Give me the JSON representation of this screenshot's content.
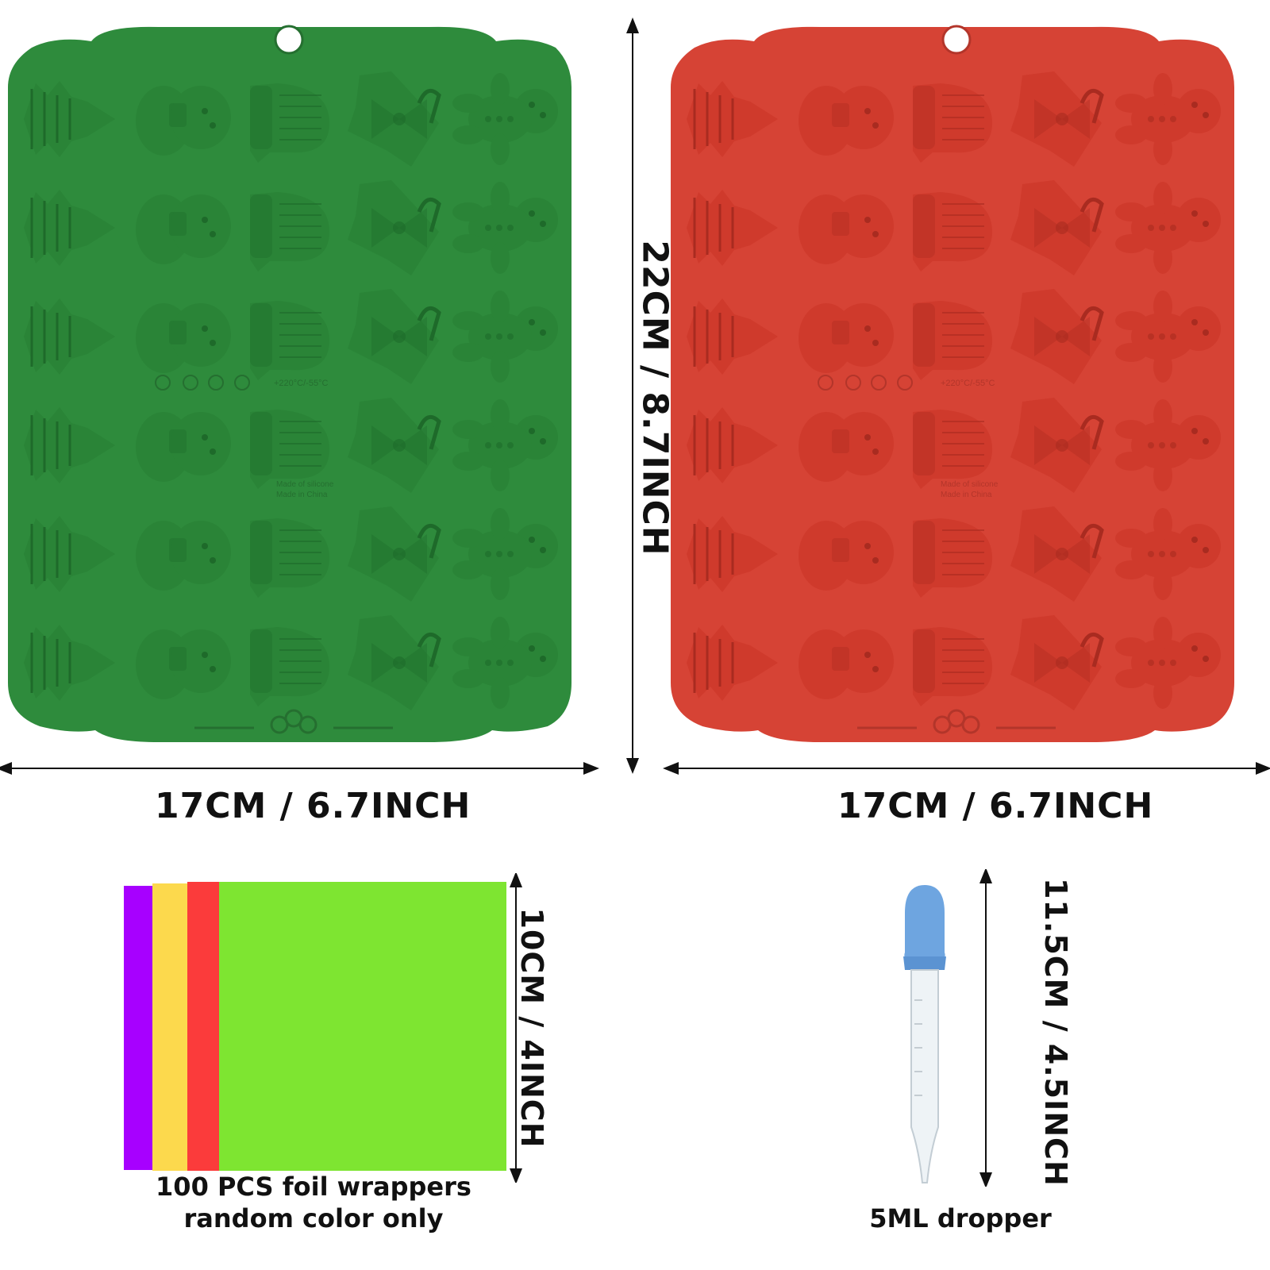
{
  "green_mold": {
    "color": "#2e8b3c",
    "width_label": "17CM / 6.7INCH",
    "embossed_text": [
      "Made of silicone",
      "Made in China"
    ],
    "temperature_text": "+220°C/-55°C"
  },
  "red_mold": {
    "color": "#d64335",
    "width_label": "17CM / 6.7INCH",
    "embossed_text": [
      "Made of silicone",
      "Made in China"
    ],
    "temperature_text": "+220°C/-55°C"
  },
  "height_label": "22CM / 8.7INCH",
  "mold_grid": {
    "rows": 6,
    "columns": [
      "tree",
      "snowman",
      "mitten",
      "bell",
      "gingerbread-man"
    ]
  },
  "foil_wrappers": {
    "colors": [
      "#a700ff",
      "#fcd94d",
      "#fb3b3b",
      "#7ee531"
    ],
    "size_label": "10CM / 4INCH",
    "caption_lines": [
      "100 PCS foil wrappers",
      "random color only"
    ]
  },
  "dropper": {
    "bulb_color": "#6ea5e0",
    "size_label": "11.5CM / 4.5INCH",
    "caption": "5ML dropper"
  }
}
